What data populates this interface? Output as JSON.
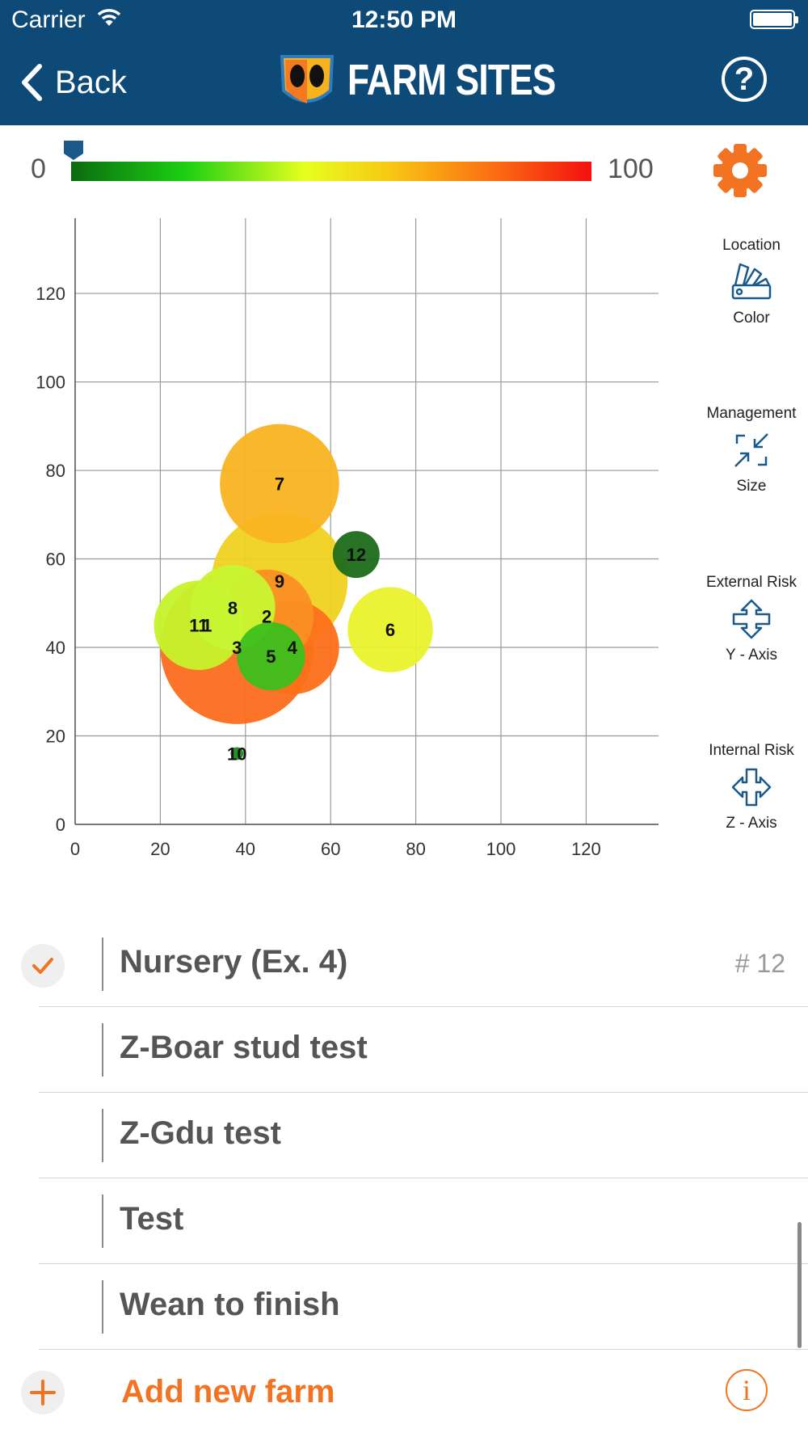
{
  "status_bar": {
    "carrier": "Carrier",
    "time": "12:50 PM"
  },
  "nav": {
    "back_label": "Back",
    "title": "FARM SITES",
    "help_label": "?"
  },
  "color_scale": {
    "min_label": "0",
    "max_label": "100",
    "handle_value": 0
  },
  "axis_controls": [
    {
      "top_label": "Location",
      "bottom_label": "Color",
      "icon": "color-swatch-icon"
    },
    {
      "top_label": "Management",
      "bottom_label": "Size",
      "icon": "resize-icon"
    },
    {
      "top_label": "External Risk",
      "bottom_label": "Y - Axis",
      "icon": "y-axis-arrows-icon"
    },
    {
      "top_label": "Internal Risk",
      "bottom_label": "Z - Axis",
      "icon": "z-axis-arrows-icon"
    }
  ],
  "chart_data": {
    "type": "scatter",
    "title": "",
    "xlabel": "",
    "ylabel": "",
    "xlim": [
      0,
      137
    ],
    "ylim": [
      0,
      137
    ],
    "xticks": [
      0,
      20,
      40,
      60,
      80,
      100,
      120
    ],
    "yticks": [
      0,
      20,
      40,
      60,
      80,
      100,
      120
    ],
    "grid": true,
    "points": [
      {
        "label": "3",
        "x": 38,
        "y": 40,
        "size": 18,
        "color": "#fc6b1f"
      },
      {
        "label": "9",
        "x": 48,
        "y": 55,
        "size": 16,
        "color": "#efd220"
      },
      {
        "label": "7",
        "x": 48,
        "y": 77,
        "size": 14,
        "color": "#f9b421"
      },
      {
        "label": "4",
        "x": 51,
        "y": 40,
        "size": 11,
        "color": "#fc7019"
      },
      {
        "label": "2",
        "x": 45,
        "y": 47,
        "size": 11,
        "color": "#fb8f24"
      },
      {
        "label": "6",
        "x": 74,
        "y": 44,
        "size": 10,
        "color": "#eaf22b"
      },
      {
        "label": "11",
        "x": 29,
        "y": 45,
        "size": 10.5,
        "color": "#c6f22b"
      },
      {
        "label": "1",
        "x": 31,
        "y": 45,
        "size": 0,
        "color": "#c6f22b"
      },
      {
        "label": "8",
        "x": 37,
        "y": 49,
        "size": 10,
        "color": "#c8f532"
      },
      {
        "label": "5",
        "x": 46,
        "y": 38,
        "size": 8,
        "color": "#3cbf1c"
      },
      {
        "label": "12",
        "x": 66,
        "y": 61,
        "size": 5.5,
        "color": "#1e6b1a"
      },
      {
        "label": "10",
        "x": 38,
        "y": 16,
        "size": 1.5,
        "color": "#1e8a1a"
      }
    ]
  },
  "farm_list": {
    "items": [
      {
        "name": "Nursery (Ex. 4)",
        "selected": true,
        "count": "# 12"
      },
      {
        "name": "Z-Boar stud test",
        "selected": false,
        "count": ""
      },
      {
        "name": "Z-Gdu test",
        "selected": false,
        "count": ""
      },
      {
        "name": "Test",
        "selected": false,
        "count": ""
      },
      {
        "name": "Wean to finish",
        "selected": false,
        "count": ""
      }
    ],
    "add_label": "Add new farm",
    "info_label": "i"
  },
  "colors": {
    "nav_bg": "#0e4a78",
    "accent": "#f27321",
    "control_icon": "#1a5a8a"
  }
}
